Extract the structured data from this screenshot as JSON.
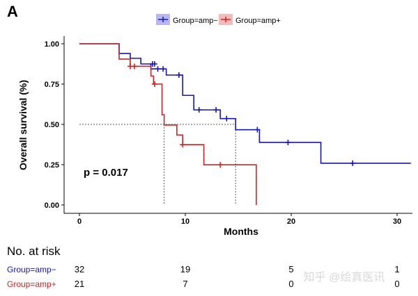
{
  "panel_label": "A",
  "watermark": "知乎 @绘真医讯",
  "chart_data": {
    "type": "line",
    "subtype": "kaplan-meier",
    "xlabel": "Months",
    "ylabel": "Overall survival (%)",
    "xlim": [
      0,
      31.5
    ],
    "ylim": [
      0,
      1
    ],
    "xticks": [
      "0",
      "10",
      "20",
      "30"
    ],
    "xtick_values": [
      0,
      10,
      20,
      30
    ],
    "yticks": [
      "0.00",
      "0.25",
      "0.50",
      "0.75",
      "1.00"
    ],
    "ytick_values": [
      0,
      0.25,
      0.5,
      0.75,
      1
    ],
    "grid": false,
    "legend_position": "top",
    "annotation": "p = 0.017",
    "median_line": {
      "survival": 0.5,
      "times": [
        8.0,
        14.75
      ]
    },
    "series": [
      {
        "name": "Group=amp−",
        "color": "#1515c8",
        "steps": [
          [
            0,
            1.0
          ],
          [
            3.75,
            0.94
          ],
          [
            4.8,
            0.91
          ],
          [
            5.8,
            0.875
          ],
          [
            6.75,
            0.844
          ],
          [
            8.2,
            0.806
          ],
          [
            9.75,
            0.68
          ],
          [
            10.8,
            0.59
          ],
          [
            13.3,
            0.536
          ],
          [
            14.75,
            0.467
          ],
          [
            17.0,
            0.388
          ],
          [
            22.8,
            0.259
          ]
        ],
        "end_time": 31.3,
        "censored": [
          [
            6.9,
            0.875
          ],
          [
            7.1,
            0.875
          ],
          [
            7.4,
            0.844
          ],
          [
            7.9,
            0.844
          ],
          [
            9.4,
            0.806
          ],
          [
            11.3,
            0.59
          ],
          [
            12.9,
            0.59
          ],
          [
            13.9,
            0.536
          ],
          [
            16.8,
            0.467
          ],
          [
            19.7,
            0.388
          ],
          [
            25.8,
            0.259
          ]
        ]
      },
      {
        "name": "Group=amp+",
        "color": "#d42020",
        "steps": [
          [
            0,
            1.0
          ],
          [
            3.75,
            0.905
          ],
          [
            4.8,
            0.86
          ],
          [
            6.75,
            0.8
          ],
          [
            7.0,
            0.75
          ],
          [
            7.8,
            0.56
          ],
          [
            8.0,
            0.496
          ],
          [
            9.2,
            0.434
          ],
          [
            9.75,
            0.374
          ],
          [
            11.75,
            0.249
          ],
          [
            16.7,
            0.0
          ]
        ],
        "end_time": 16.7,
        "censored": [
          [
            4.8,
            0.86
          ],
          [
            5.2,
            0.86
          ],
          [
            7.1,
            0.75
          ],
          [
            9.75,
            0.374
          ],
          [
            13.3,
            0.249
          ]
        ]
      }
    ],
    "risk_table": {
      "title": "No. at risk",
      "times": [
        0,
        10,
        20,
        30
      ],
      "rows": [
        {
          "label": "Group=amp−",
          "color": "#1515c8",
          "values": [
            "32",
            "19",
            "5",
            "1"
          ]
        },
        {
          "label": "Group=amp+",
          "color": "#d42020",
          "values": [
            "21",
            "7",
            "0",
            "0"
          ]
        }
      ]
    }
  }
}
